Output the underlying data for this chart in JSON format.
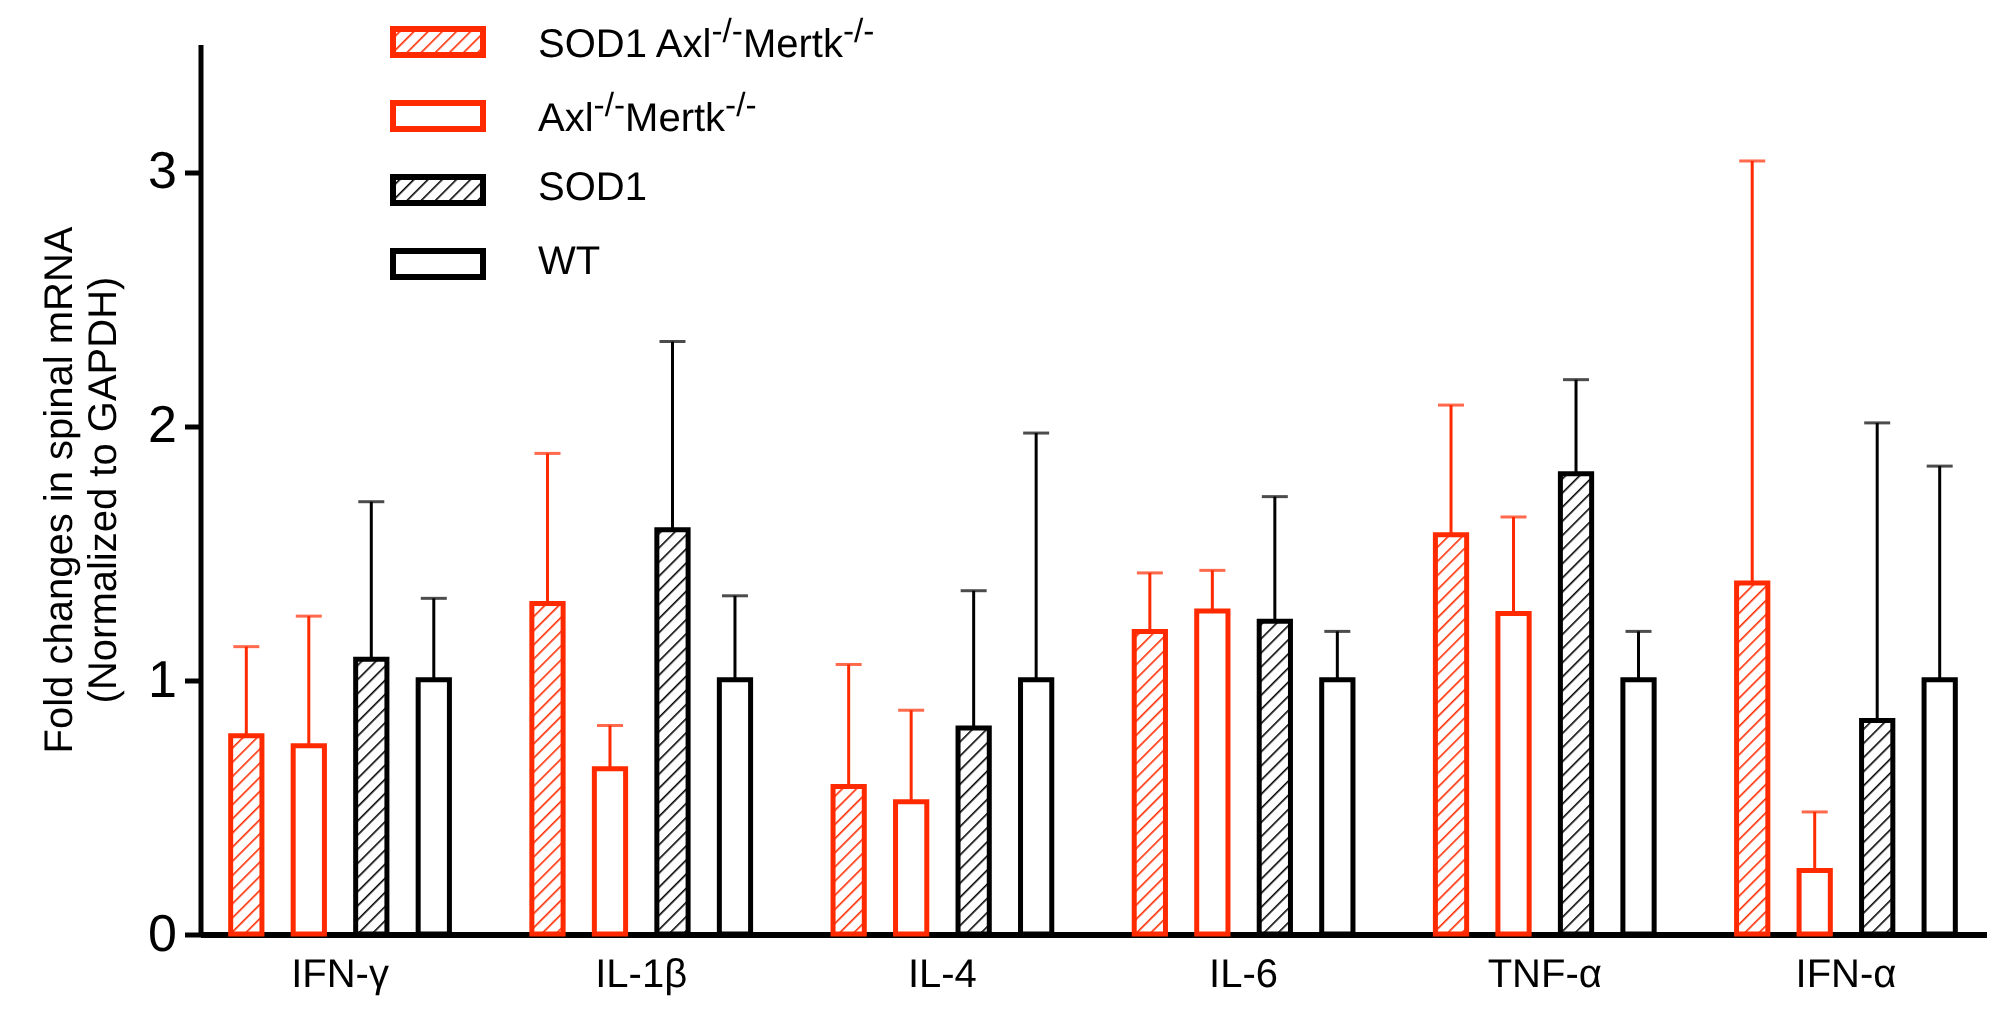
{
  "chart_data": {
    "type": "bar",
    "ylabel": "Fold changes in spinal mRNA\n(Normalized to GAPDH)",
    "categories": [
      "IFN-γ",
      "IL-1β",
      "IL-4",
      "IL-6",
      "TNF-α",
      "IFN-α"
    ],
    "ylim": [
      0,
      3.5
    ],
    "yticks": [
      0,
      1,
      2,
      3
    ],
    "grid": false,
    "legend": "top left",
    "series": [
      {
        "name": "SOD1 Axl$^{-/-}$Mertk$^{-/-}$",
        "color": "#ff2a00",
        "values": [
          0.78,
          1.3,
          0.58,
          1.19,
          1.57,
          1.38
        ],
        "errors": [
          [
            0.78,
            1.13
          ],
          [
            1.3,
            1.89
          ],
          [
            0.58,
            1.06
          ],
          [
            1.19,
            1.42
          ],
          [
            1.57,
            2.08
          ],
          [
            1.38,
            3.04
          ]
        ]
      },
      {
        "name": "Axl$^{-/-}$Mertk$^{-/-}$",
        "color": "#ff2a00",
        "values": [
          0.74,
          0.65,
          0.52,
          1.27,
          1.26,
          0.25
        ],
        "errors": [
          [
            0.74,
            1.25
          ],
          [
            0.65,
            0.82
          ],
          [
            0.52,
            0.88
          ],
          [
            1.27,
            1.43
          ],
          [
            1.26,
            1.64
          ],
          [
            0.25,
            0.48
          ]
        ]
      },
      {
        "name": "SOD1",
        "color": "#000000",
        "values": [
          1.08,
          1.59,
          0.81,
          1.23,
          1.81,
          0.84
        ],
        "errors": [
          [
            1.08,
            1.7
          ],
          [
            1.59,
            2.33
          ],
          [
            0.81,
            1.35
          ],
          [
            1.23,
            1.72
          ],
          [
            1.81,
            2.18
          ],
          [
            0.84,
            2.01
          ]
        ]
      },
      {
        "name": "WT",
        "color": "#000000",
        "values": [
          1.0,
          1.0,
          1.0,
          1.0,
          1.0,
          1.0
        ],
        "errors": [
          [
            1.0,
            1.32
          ],
          [
            1.0,
            1.33
          ],
          [
            1.0,
            1.97
          ],
          [
            1.0,
            1.19
          ],
          [
            1.0,
            1.19
          ],
          [
            1.0,
            1.84
          ]
        ]
      }
    ]
  }
}
